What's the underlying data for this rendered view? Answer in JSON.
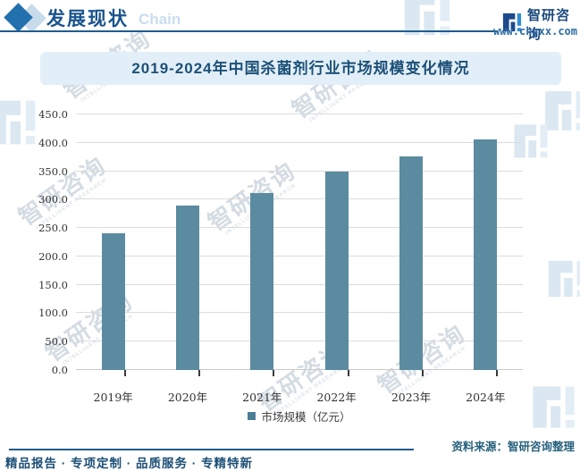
{
  "header": {
    "title": "发展现状",
    "subtitle": "Chain",
    "brand": "智研咨询",
    "website": "www.chyxx.com"
  },
  "chart_data": {
    "type": "bar",
    "title": "2019-2024年中国杀菌剂行业市场规模变化情况",
    "categories": [
      "2019年",
      "2020年",
      "2021年",
      "2022年",
      "2023年",
      "2024年"
    ],
    "values": [
      240,
      290,
      312,
      350,
      376,
      406
    ],
    "series_name": "市场规模",
    "legend": "市场规模（亿元）",
    "xlabel": "",
    "ylabel": "",
    "ylim": [
      0,
      450
    ],
    "ytick_step": 50,
    "ytick_labels": [
      "450.0",
      "400.0",
      "350.0",
      "300.0",
      "250.0",
      "200.0",
      "150.0",
      "100.0",
      "50.0",
      "0.0"
    ],
    "grid": true,
    "legend_position": "bottom",
    "bar_color": "#5b8ba0"
  },
  "footer": {
    "source": "资料来源：智研咨询整理",
    "tagline": "精品报告 · 专项定制 · 品质服务 · 专精特新"
  },
  "watermark": {
    "text": "智研咨询",
    "subtext": "INTELLIGENT RESEARCH"
  },
  "colors": {
    "accent": "#1f5c8f",
    "banner_bg": "#e2eff8",
    "title_text": "#1d5077",
    "bar": "#5b8ba0"
  }
}
